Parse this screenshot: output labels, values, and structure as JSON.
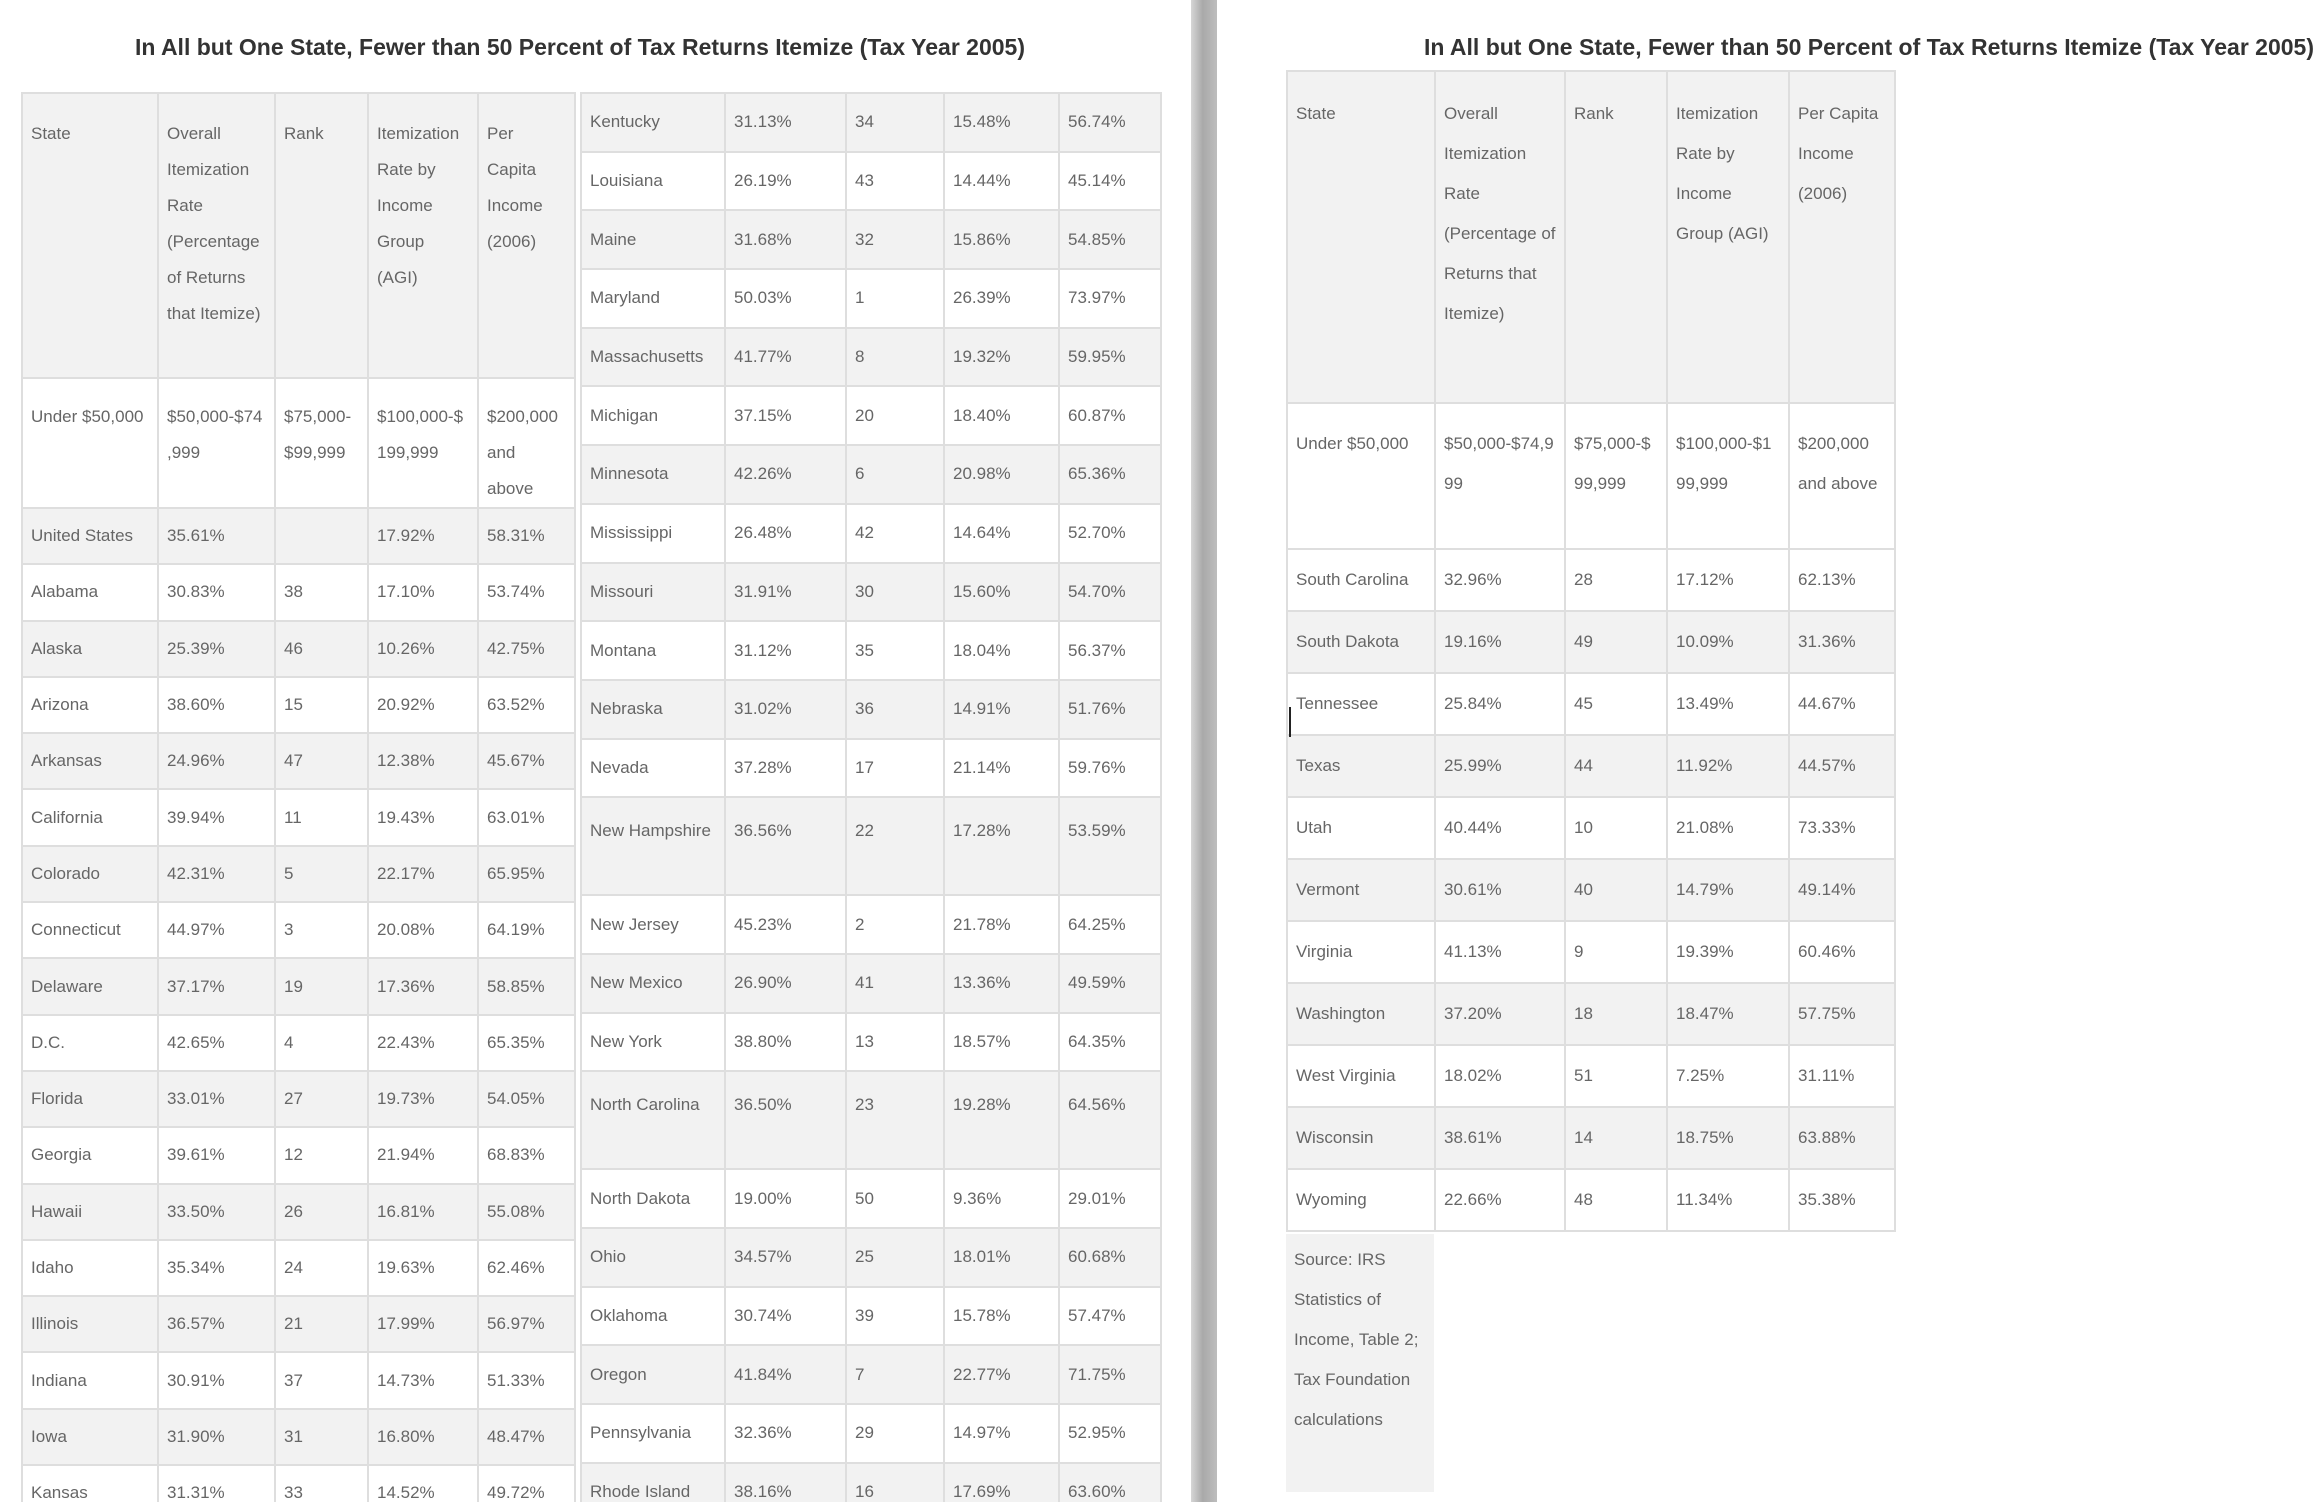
{
  "left_panel": {
    "title": "In All but One State, Fewer than 50 Percent of Tax Returns Itemize (Tax Year 2005)",
    "header": [
      "State",
      "Overall Itemization Rate (Percentage of Returns that Itemize)",
      "Rank",
      "Itemization Rate by Income Group (AGI)",
      "Per Capita Income (2006)"
    ],
    "income_groups": [
      "Under $50,000",
      "$50,000-$74,999",
      "$75,000-$99,999",
      "$100,000-$199,999",
      "$200,000 and above"
    ],
    "rows_a": [
      [
        "United States",
        "35.61%",
        "",
        "17.92%",
        "58.31%"
      ],
      [
        "Alabama",
        "30.83%",
        "38",
        "17.10%",
        "53.74%"
      ],
      [
        "Alaska",
        "25.39%",
        "46",
        "10.26%",
        "42.75%"
      ],
      [
        "Arizona",
        "38.60%",
        "15",
        "20.92%",
        "63.52%"
      ],
      [
        "Arkansas",
        "24.96%",
        "47",
        "12.38%",
        "45.67%"
      ],
      [
        "California",
        "39.94%",
        "11",
        "19.43%",
        "63.01%"
      ],
      [
        "Colorado",
        "42.31%",
        "5",
        "22.17%",
        "65.95%"
      ],
      [
        "Connecticut",
        "44.97%",
        "3",
        "20.08%",
        "64.19%"
      ],
      [
        "Delaware",
        "37.17%",
        "19",
        "17.36%",
        "58.85%"
      ],
      [
        "D.C.",
        "42.65%",
        "4",
        "22.43%",
        "65.35%"
      ],
      [
        "Florida",
        "33.01%",
        "27",
        "19.73%",
        "54.05%"
      ],
      [
        "Georgia",
        "39.61%",
        "12",
        "21.94%",
        "68.83%"
      ],
      [
        "Hawaii",
        "33.50%",
        "26",
        "16.81%",
        "55.08%"
      ],
      [
        "Idaho",
        "35.34%",
        "24",
        "19.63%",
        "62.46%"
      ],
      [
        "Illinois",
        "36.57%",
        "21",
        "17.99%",
        "56.97%"
      ],
      [
        "Indiana",
        "30.91%",
        "37",
        "14.73%",
        "51.33%"
      ],
      [
        "Iowa",
        "31.90%",
        "31",
        "16.80%",
        "48.47%"
      ],
      [
        "Kansas",
        "31.31%",
        "33",
        "14.52%",
        "49.72%"
      ]
    ],
    "rows_b": [
      [
        "Kentucky",
        "31.13%",
        "34",
        "15.48%",
        "56.74%"
      ],
      [
        "Louisiana",
        "26.19%",
        "43",
        "14.44%",
        "45.14%"
      ],
      [
        "Maine",
        "31.68%",
        "32",
        "15.86%",
        "54.85%"
      ],
      [
        "Maryland",
        "50.03%",
        "1",
        "26.39%",
        "73.97%"
      ],
      [
        "Massachusetts",
        "41.77%",
        "8",
        "19.32%",
        "59.95%"
      ],
      [
        "Michigan",
        "37.15%",
        "20",
        "18.40%",
        "60.87%"
      ],
      [
        "Minnesota",
        "42.26%",
        "6",
        "20.98%",
        "65.36%"
      ],
      [
        "Mississippi",
        "26.48%",
        "42",
        "14.64%",
        "52.70%"
      ],
      [
        "Missouri",
        "31.91%",
        "30",
        "15.60%",
        "54.70%"
      ],
      [
        "Montana",
        "31.12%",
        "35",
        "18.04%",
        "56.37%"
      ],
      [
        "Nebraska",
        "31.02%",
        "36",
        "14.91%",
        "51.76%"
      ],
      [
        "Nevada",
        "37.28%",
        "17",
        "21.14%",
        "59.76%"
      ],
      [
        "New Hampshire",
        "36.56%",
        "22",
        "17.28%",
        "53.59%"
      ],
      [
        "New Jersey",
        "45.23%",
        "2",
        "21.78%",
        "64.25%"
      ],
      [
        "New Mexico",
        "26.90%",
        "41",
        "13.36%",
        "49.59%"
      ],
      [
        "New York",
        "38.80%",
        "13",
        "18.57%",
        "64.35%"
      ],
      [
        "North Carolina",
        "36.50%",
        "23",
        "19.28%",
        "64.56%"
      ],
      [
        "North Dakota",
        "19.00%",
        "50",
        "9.36%",
        "29.01%"
      ],
      [
        "Ohio",
        "34.57%",
        "25",
        "18.01%",
        "60.68%"
      ],
      [
        "Oklahoma",
        "30.74%",
        "39",
        "15.78%",
        "57.47%"
      ],
      [
        "Oregon",
        "41.84%",
        "7",
        "22.77%",
        "71.75%"
      ],
      [
        "Pennsylvania",
        "32.36%",
        "29",
        "14.97%",
        "52.95%"
      ],
      [
        "Rhode Island",
        "38.16%",
        "16",
        "17.69%",
        "63.60%"
      ]
    ]
  },
  "right_panel": {
    "title": "In All but One State, Fewer than 50 Percent of Tax Returns Itemize (Tax Year 2005)",
    "header": [
      "State",
      "Overall Itemization Rate (Percentage of Returns that Itemize)",
      "Rank",
      "Itemization Rate by Income Group (AGI)",
      "Per Capita Income (2006)"
    ],
    "income_groups": [
      "Under $50,000",
      "$50,000-$74,999",
      "$75,000-$99,999",
      "$100,000-$199,999",
      "$200,000 and above"
    ],
    "rows": [
      [
        "South Carolina",
        "32.96%",
        "28",
        "17.12%",
        "62.13%"
      ],
      [
        "South Dakota",
        "19.16%",
        "49",
        "10.09%",
        "31.36%"
      ],
      [
        "Tennessee",
        "25.84%",
        "45",
        "13.49%",
        "44.67%"
      ],
      [
        "Texas",
        "25.99%",
        "44",
        "11.92%",
        "44.57%"
      ],
      [
        "Utah",
        "40.44%",
        "10",
        "21.08%",
        "73.33%"
      ],
      [
        "Vermont",
        "30.61%",
        "40",
        "14.79%",
        "49.14%"
      ],
      [
        "Virginia",
        "41.13%",
        "9",
        "19.39%",
        "60.46%"
      ],
      [
        "Washington",
        "37.20%",
        "18",
        "18.47%",
        "57.75%"
      ],
      [
        "West Virginia",
        "18.02%",
        "51",
        "7.25%",
        "31.11%"
      ],
      [
        "Wisconsin",
        "38.61%",
        "14",
        "18.75%",
        "63.88%"
      ],
      [
        "Wyoming",
        "22.66%",
        "48",
        "11.34%",
        "35.38%"
      ]
    ],
    "source": "Source: IRS Statistics of Income, Table 2; Tax Foundation calculations"
  },
  "colors": {
    "header_bg": "#f2f2f2",
    "border": "#dedede",
    "text": "#666666",
    "title": "#333333"
  }
}
